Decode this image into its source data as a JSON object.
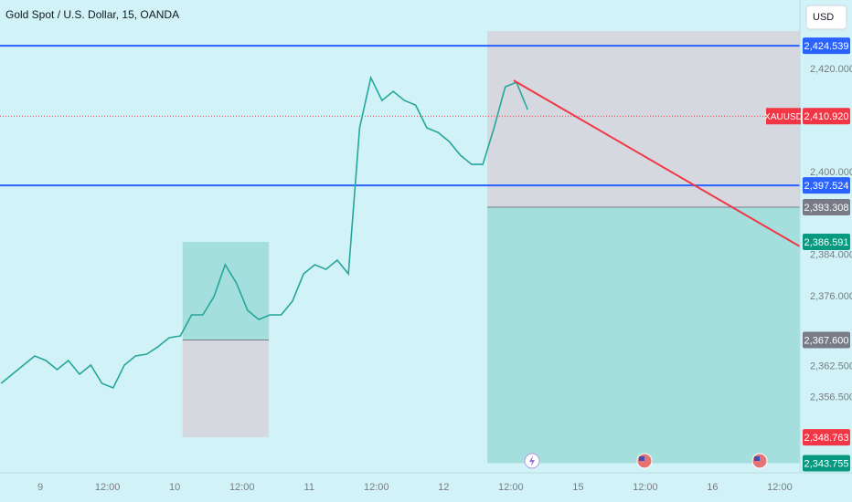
{
  "chart_data": {
    "type": "line",
    "title": "Gold Spot / U.S. Dollar, 15, OANDA",
    "currency": "USD",
    "x": [
      -7,
      -5,
      -3,
      -1,
      1,
      3,
      5,
      7,
      9,
      11,
      13,
      15,
      17,
      19,
      21,
      23,
      25,
      27,
      29,
      31,
      33,
      35,
      37,
      39,
      41,
      43,
      45,
      47,
      49,
      51,
      53,
      55,
      57,
      59,
      61,
      63,
      65,
      67,
      69,
      71,
      73,
      75,
      77,
      79,
      81,
      83,
      85,
      87
    ],
    "series": [
      {
        "name": "XAUUSD",
        "color": "#26a69a",
        "values": [
          2359.21,
          2360.98,
          2362.75,
          2364.51,
          2363.63,
          2361.86,
          2363.63,
          2360.98,
          2362.75,
          2359.21,
          2358.33,
          2362.75,
          2364.51,
          2364.86,
          2366.28,
          2368.04,
          2368.4,
          2372.46,
          2372.46,
          2375.99,
          2382.17,
          2378.64,
          2373.34,
          2371.57,
          2372.46,
          2372.46,
          2375.1,
          2380.4,
          2382.17,
          2381.28,
          2383.05,
          2380.4,
          2408.65,
          2418.36,
          2413.95,
          2415.71,
          2413.95,
          2413.06,
          2408.65,
          2407.77,
          2406.0,
          2403.35,
          2401.59,
          2401.59,
          2408.65,
          2416.6,
          2417.48,
          2412.18
        ]
      }
    ],
    "xlim": [
      -7.2,
      135.6
    ],
    "ylim": [
      2341.9,
      2433.4
    ],
    "xticks": [
      {
        "value": 0,
        "label": "9"
      },
      {
        "value": 12,
        "label": "12:00"
      },
      {
        "value": 24,
        "label": "10"
      },
      {
        "value": 36,
        "label": "12:00"
      },
      {
        "value": 48,
        "label": "11"
      },
      {
        "value": 60,
        "label": "12:00"
      },
      {
        "value": 72,
        "label": "12"
      },
      {
        "value": 84,
        "label": "12:00"
      },
      {
        "value": 96,
        "label": "15"
      },
      {
        "value": 108,
        "label": "12:00"
      },
      {
        "value": 120,
        "label": "16"
      },
      {
        "value": 132,
        "label": "12:00"
      }
    ],
    "yticks": [
      {
        "value": 2420,
        "label": "2,420.000"
      },
      {
        "value": 2400,
        "label": "2,400.000"
      },
      {
        "value": 2384,
        "label": "2,384.000"
      },
      {
        "value": 2376,
        "label": "2,376.000"
      },
      {
        "value": 2362.5,
        "label": "2,362.500"
      },
      {
        "value": 2356.5,
        "label": "2,356.500"
      }
    ],
    "levels": [
      {
        "value": 2424.539,
        "label": "2,424.539",
        "color": "#2962ff"
      },
      {
        "value": 2397.524,
        "label": "2,397.524",
        "color": "#2962ff"
      }
    ],
    "current_price": {
      "value": 2410.92,
      "label": "2,410.920",
      "color": "#f23645"
    },
    "positions": [
      {
        "start": 25.4,
        "end": 40.8,
        "entry": 2367.6,
        "entry_label": "2,367.600",
        "target": 2386.591,
        "target_label": "2,386.591",
        "stop": 2348.763,
        "stop_label": "2,348.763"
      },
      {
        "start": 79.8,
        "end": 135.6,
        "entry": 2393.308,
        "entry_label": "2,393.308",
        "target": 2343.755,
        "target_label": "2,343.755",
        "stop": 2427.4
      }
    ],
    "trendline": {
      "x": [
        84.5,
        135.6
      ],
      "values": [
        2417.83,
        2385.7
      ],
      "color": "#f23645"
    }
  }
}
